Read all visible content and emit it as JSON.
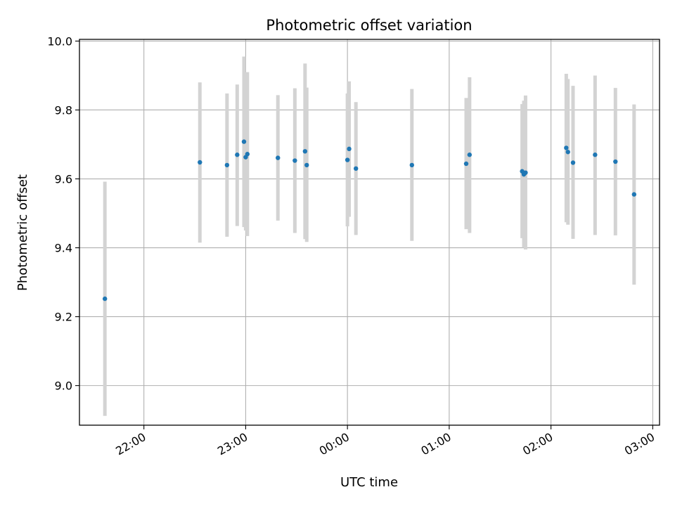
{
  "chart_data": {
    "type": "scatter",
    "title": "Photometric offset variation",
    "xlabel": "UTC time",
    "ylabel": "Photometric offset",
    "x_is_time": true,
    "xlim": [
      "21:22",
      "03:04"
    ],
    "ylim": [
      8.885,
      10.005
    ],
    "x_ticks": [
      "22:00",
      "23:00",
      "00:00",
      "01:00",
      "02:00",
      "03:00"
    ],
    "y_ticks": [
      "9.0",
      "9.2",
      "9.4",
      "9.6",
      "9.8",
      "10.0"
    ],
    "grid": true,
    "marker_color": "#1f77b4",
    "errorbar_color": "#d3d3d3",
    "points": [
      {
        "x": "21:37",
        "y": 9.252,
        "low": 8.912,
        "high": 9.592
      },
      {
        "x": "22:33",
        "y": 9.648,
        "low": 9.415,
        "high": 9.88
      },
      {
        "x": "22:49",
        "y": 9.64,
        "low": 9.432,
        "high": 9.848
      },
      {
        "x": "22:55",
        "y": 9.67,
        "low": 9.463,
        "high": 9.874
      },
      {
        "x": "22:59",
        "y": 9.708,
        "low": 9.46,
        "high": 9.955
      },
      {
        "x": "23:00",
        "y": 9.663,
        "low": 9.45,
        "high": 9.878
      },
      {
        "x": "23:01",
        "y": 9.672,
        "low": 9.434,
        "high": 9.91
      },
      {
        "x": "23:19",
        "y": 9.661,
        "low": 9.479,
        "high": 9.843
      },
      {
        "x": "23:29",
        "y": 9.653,
        "low": 9.443,
        "high": 9.863
      },
      {
        "x": "23:35",
        "y": 9.68,
        "low": 9.425,
        "high": 9.935
      },
      {
        "x": "23:36",
        "y": 9.64,
        "low": 9.417,
        "high": 9.865
      },
      {
        "x": "00:00",
        "y": 9.655,
        "low": 9.462,
        "high": 9.848
      },
      {
        "x": "00:01",
        "y": 9.687,
        "low": 9.49,
        "high": 9.883
      },
      {
        "x": "00:05",
        "y": 9.63,
        "low": 9.437,
        "high": 9.823
      },
      {
        "x": "00:38",
        "y": 9.64,
        "low": 9.42,
        "high": 9.861
      },
      {
        "x": "01:10",
        "y": 9.644,
        "low": 9.454,
        "high": 9.835
      },
      {
        "x": "01:12",
        "y": 9.67,
        "low": 9.443,
        "high": 9.895
      },
      {
        "x": "01:43",
        "y": 9.622,
        "low": 9.428,
        "high": 9.817
      },
      {
        "x": "01:44",
        "y": 9.613,
        "low": 9.4,
        "high": 9.827
      },
      {
        "x": "01:45",
        "y": 9.618,
        "low": 9.395,
        "high": 9.842
      },
      {
        "x": "02:09",
        "y": 9.69,
        "low": 9.474,
        "high": 9.905
      },
      {
        "x": "02:10",
        "y": 9.678,
        "low": 9.467,
        "high": 9.89
      },
      {
        "x": "02:13",
        "y": 9.647,
        "low": 9.426,
        "high": 9.87
      },
      {
        "x": "02:26",
        "y": 9.67,
        "low": 9.437,
        "high": 9.9
      },
      {
        "x": "02:38",
        "y": 9.65,
        "low": 9.436,
        "high": 9.864
      },
      {
        "x": "02:49",
        "y": 9.555,
        "low": 9.293,
        "high": 9.816
      }
    ]
  }
}
